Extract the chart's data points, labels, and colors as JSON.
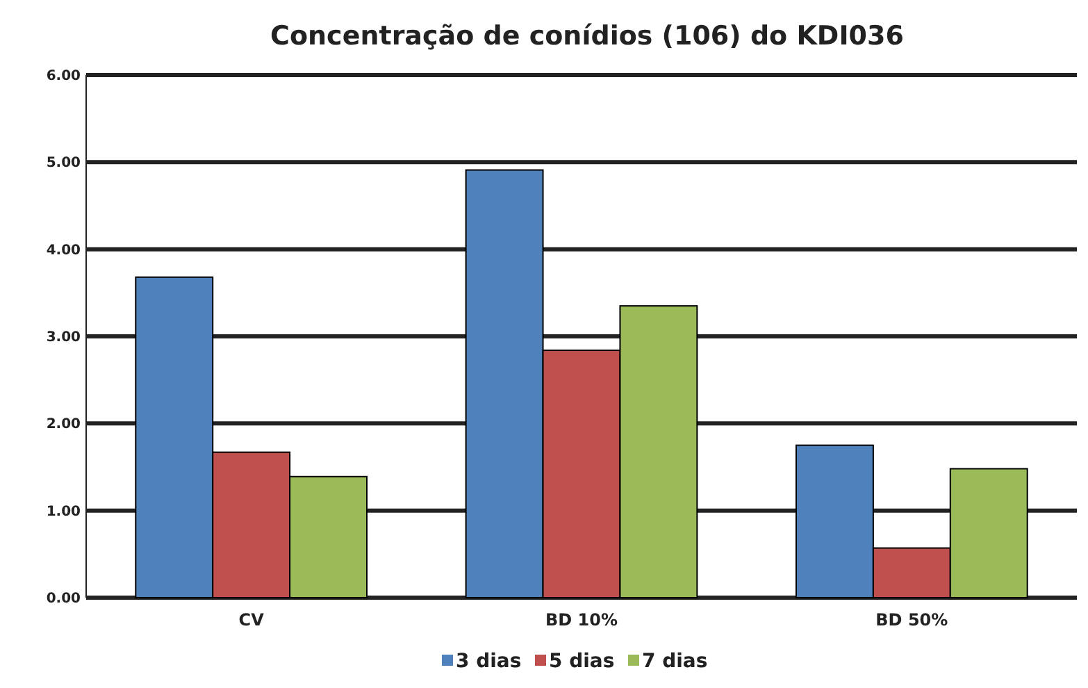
{
  "chart_data": {
    "type": "bar",
    "title": "Concentração de conídios (106) do KDI036",
    "categories": [
      "CV",
      "BD 10%",
      "BD 50%"
    ],
    "series": [
      {
        "name": "3 dias",
        "color": "#4f81bd",
        "values": [
          3.68,
          4.91,
          1.75
        ]
      },
      {
        "name": "5 dias",
        "color": "#c0504d",
        "values": [
          1.67,
          2.84,
          0.57
        ]
      },
      {
        "name": "7 dias",
        "color": "#9bbb59",
        "values": [
          1.39,
          3.35,
          1.48
        ]
      }
    ],
    "ylim": [
      0,
      6
    ],
    "yticks": [
      {
        "value": 0,
        "label": "0.00"
      },
      {
        "value": 1,
        "label": "1.00"
      },
      {
        "value": 2,
        "label": "2.00"
      },
      {
        "value": 3,
        "label": "3.00"
      },
      {
        "value": 4,
        "label": "4.00"
      },
      {
        "value": 5,
        "label": "5.00"
      },
      {
        "value": 6,
        "label": "6.00"
      }
    ],
    "grid": "y",
    "legend": "bottom"
  }
}
